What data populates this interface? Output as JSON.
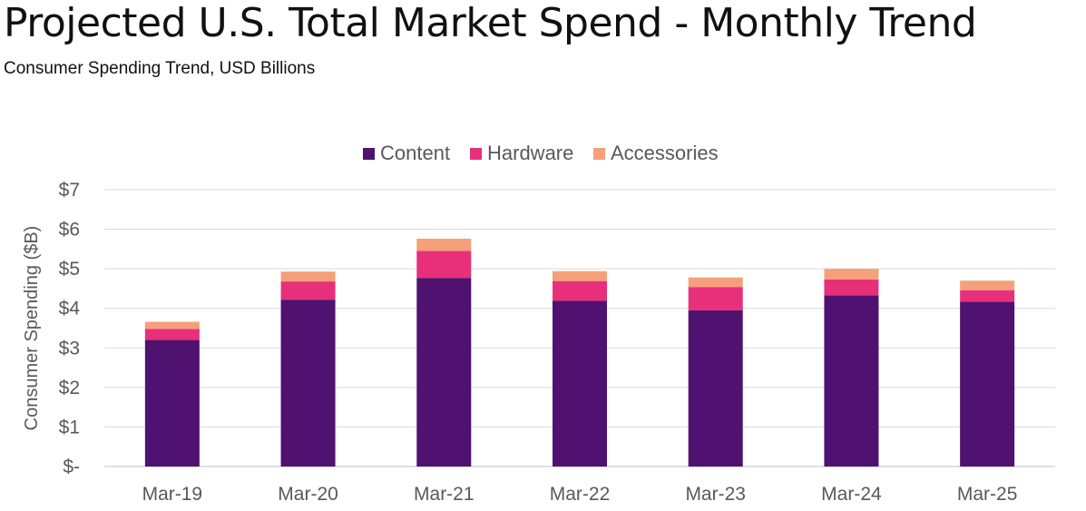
{
  "title": "Projected U.S. Total Market Spend - Monthly Trend",
  "subtitle": "Consumer Spending Trend, USD Billions",
  "chart_data": {
    "type": "bar",
    "stacked": true,
    "categories": [
      "Mar-19",
      "Mar-20",
      "Mar-21",
      "Mar-22",
      "Mar-23",
      "Mar-24",
      "Mar-25"
    ],
    "series": [
      {
        "name": "Content",
        "color": "#4f1270",
        "values": [
          3.2,
          4.22,
          4.77,
          4.19,
          3.95,
          4.33,
          4.17
        ]
      },
      {
        "name": "Hardware",
        "color": "#e8307a",
        "values": [
          0.28,
          0.46,
          0.68,
          0.5,
          0.59,
          0.4,
          0.29
        ]
      },
      {
        "name": "Accessories",
        "color": "#f5a07a",
        "values": [
          0.18,
          0.25,
          0.31,
          0.25,
          0.24,
          0.27,
          0.24
        ]
      }
    ],
    "ylabel": "Consumer Spending ($B)",
    "yticks": [
      "$-",
      "$1",
      "$2",
      "$3",
      "$4",
      "$5",
      "$6",
      "$7"
    ],
    "ylim": [
      0,
      7
    ],
    "legend_position": "top",
    "grid": true
  }
}
